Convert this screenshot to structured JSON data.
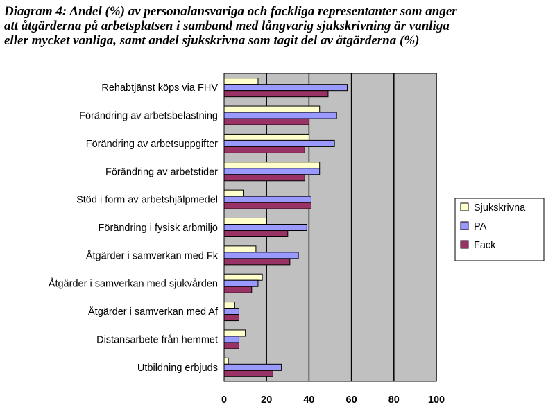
{
  "chart_data": {
    "type": "bar",
    "orientation": "horizontal",
    "title_lines": [
      "Diagram 4: Andel (%) av personalansvariga och fackliga representanter som anger",
      "att åtgärderna på arbetsplatsen i samband med långvarig sjukskrivning är vanliga",
      "eller mycket vanliga, samt andel sjukskrivna som tagit del av åtgärderna (%)"
    ],
    "categories": [
      "Rehabtjänst köps via FHV",
      "Förändring av arbetsbelastning",
      "Förändring av arbetsuppgifter",
      "Förändring av arbetstider",
      "Stöd i form av arbetshjälpmedel",
      "Förändring i fysisk arbmiljö",
      "Åtgärder i samverkan med Fk",
      "Åtgärder i samverkan med sjukvården",
      "Åtgärder i samverkan med Af",
      "Distansarbete från hemmet",
      "Utbildning erbjuds"
    ],
    "series": [
      {
        "name": "Sjukskrivna",
        "color": "#ffffcc",
        "values": [
          16,
          45,
          40,
          45,
          9,
          20,
          15,
          18,
          5,
          10,
          2
        ]
      },
      {
        "name": "PA",
        "color": "#9999ff",
        "values": [
          58,
          53,
          52,
          45,
          41,
          39,
          35,
          16,
          7,
          7,
          27
        ]
      },
      {
        "name": "Fack",
        "color": "#993366",
        "values": [
          49,
          40,
          38,
          38,
          41,
          30,
          31,
          13,
          7,
          7,
          23
        ]
      }
    ],
    "xlim": [
      0,
      100
    ],
    "xticks": [
      0,
      20,
      40,
      60,
      80,
      100
    ],
    "grid": true,
    "plot_background": "#c0c0c0",
    "legend_position": "right"
  }
}
